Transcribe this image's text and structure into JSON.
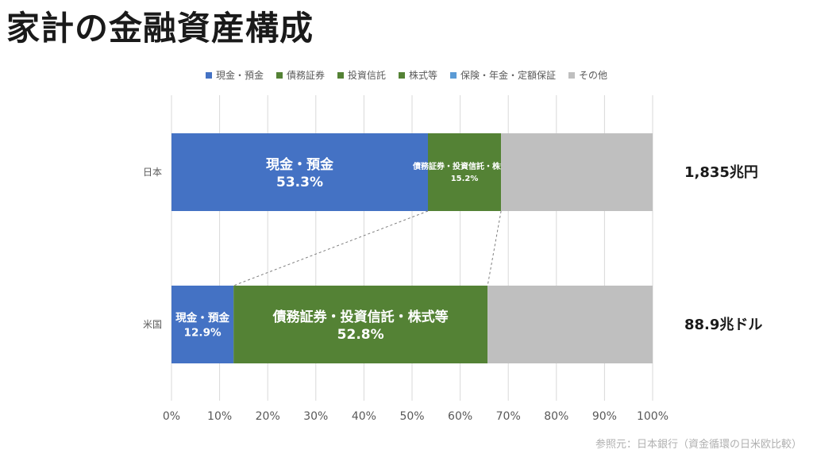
{
  "page": {
    "title": "家計の金融資産構成",
    "source": "参照元：日本銀行（資金循環の日米欧比較）"
  },
  "chart_data": {
    "type": "bar",
    "orientation": "horizontal",
    "stacked": true,
    "categories": [
      "日本",
      "米国"
    ],
    "totals": [
      "1,835兆円",
      "88.9兆ドル"
    ],
    "xlim": [
      0,
      100
    ],
    "xticks": [
      "0%",
      "10%",
      "20%",
      "30%",
      "40%",
      "50%",
      "60%",
      "70%",
      "80%",
      "90%",
      "100%"
    ],
    "grid": true,
    "legend_position": "top",
    "legend": [
      {
        "name": "現金・預金",
        "color": "#4472c4"
      },
      {
        "name": "債務証券",
        "color": "#548235"
      },
      {
        "name": "投資信託",
        "color": "#548235"
      },
      {
        "name": "株式等",
        "color": "#548235"
      },
      {
        "name": "保険・年金・定額保証",
        "color": "#5b9bd5"
      },
      {
        "name": "その他",
        "color": "#bfbfbf"
      }
    ],
    "series": [
      {
        "name": "現金・預金",
        "color": "#4472c4",
        "values": [
          53.3,
          12.9
        ],
        "labels": [
          {
            "name": "現金・預金",
            "value": "53.3%"
          },
          {
            "name": "現金・預金",
            "value": "12.9%"
          }
        ]
      },
      {
        "name": "債務証券・投資信託・株式等",
        "color": "#548235",
        "values": [
          15.2,
          52.8
        ],
        "labels": [
          {
            "name": "債務証券・投資信託・株式等",
            "value": "15.2%"
          },
          {
            "name": "債務証券・投資信託・株式等",
            "value": "52.8%"
          }
        ]
      },
      {
        "name": "その他",
        "color": "#bfbfbf",
        "values": [
          31.5,
          34.3
        ]
      }
    ]
  }
}
